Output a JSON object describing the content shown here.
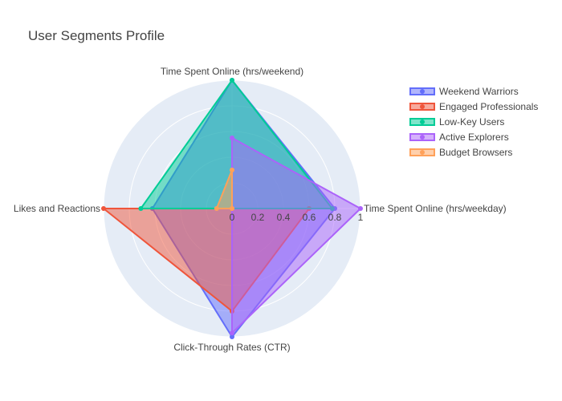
{
  "chart_data": {
    "type": "radar",
    "title": "User Segments Profile",
    "axes": [
      "Time Spent Online (hrs/weekday)",
      "Time Spent Online (hrs/weekend)",
      "Likes and Reactions",
      "Click-Through Rates (CTR)"
    ],
    "radial_range": [
      0,
      1
    ],
    "radial_ticks": [
      "0",
      "0.2",
      "0.4",
      "0.6",
      "0.8",
      "1"
    ],
    "grid": true,
    "legend_position": "top-right",
    "series": [
      {
        "name": "Weekend Warriors",
        "color": "#636efa",
        "values": [
          0.8,
          1.0,
          0.62,
          1.0
        ]
      },
      {
        "name": "Engaged Professionals",
        "color": "#ef553b",
        "values": [
          0.6,
          0.0,
          1.0,
          0.8
        ]
      },
      {
        "name": "Low-Key Users",
        "color": "#00cc96",
        "values": [
          0.78,
          1.0,
          0.71,
          0.0
        ]
      },
      {
        "name": "Active Explorers",
        "color": "#ab63fa",
        "values": [
          1.0,
          0.55,
          0.0,
          0.97
        ]
      },
      {
        "name": "Budget Browsers",
        "color": "#ffa15a",
        "values": [
          0.0,
          0.3,
          0.12,
          0.0
        ]
      }
    ]
  }
}
